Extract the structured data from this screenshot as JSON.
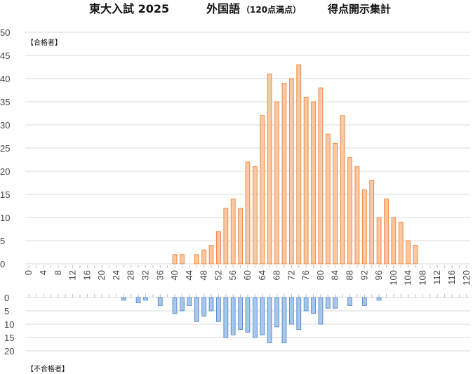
{
  "title": {
    "main": "東大入試 2025",
    "subject": "外国語",
    "note": "（120点満点）",
    "suffix": "得点開示集計"
  },
  "legend": {
    "pass": "【合格者】",
    "fail": "【不合格者】"
  },
  "colors": {
    "pass_fill": "#f9c8a4",
    "pass_stroke": "#ef8a45",
    "fail_fill": "#a9c7ea",
    "fail_stroke": "#5b8fd0",
    "grid": "#d9d9d9"
  },
  "chart_data": [
    {
      "type": "bar",
      "title": "【合格者】",
      "categories": [
        "0",
        "2",
        "4",
        "6",
        "8",
        "10",
        "12",
        "14",
        "16",
        "18",
        "20",
        "22",
        "24",
        "26",
        "28",
        "30",
        "32",
        "34",
        "36",
        "38",
        "40",
        "42",
        "44",
        "46",
        "48",
        "50",
        "52",
        "54",
        "56",
        "58",
        "60",
        "62",
        "64",
        "66",
        "68",
        "70",
        "72",
        "74",
        "76",
        "78",
        "80",
        "82",
        "84",
        "86",
        "88",
        "90",
        "92",
        "94",
        "96",
        "98",
        "100",
        "102",
        "104",
        "106",
        "108",
        "110",
        "112",
        "114",
        "116",
        "118",
        "120"
      ],
      "tick_labels": [
        "0",
        "4",
        "8",
        "12",
        "16",
        "20",
        "24",
        "28",
        "32",
        "36",
        "40",
        "44",
        "48",
        "52",
        "56",
        "60",
        "64",
        "68",
        "72",
        "76",
        "80",
        "84",
        "88",
        "92",
        "96",
        "100",
        "104",
        "108",
        "112",
        "116",
        "120"
      ],
      "values": [
        0,
        0,
        0,
        0,
        0,
        0,
        0,
        0,
        0,
        0,
        0,
        0,
        0,
        0,
        0,
        0,
        0,
        0,
        0,
        0,
        2,
        2,
        0,
        2,
        3,
        4,
        7,
        12,
        14,
        12,
        22,
        21,
        32,
        41,
        35,
        39,
        40,
        43,
        36,
        35,
        38,
        28,
        26,
        32,
        23,
        21,
        16,
        18,
        10,
        14,
        10,
        9,
        5,
        4,
        0,
        0,
        0,
        0,
        0,
        0,
        0
      ],
      "ylim": [
        0,
        50
      ],
      "yticks": [
        0,
        5,
        10,
        15,
        20,
        25,
        30,
        35,
        40,
        45,
        50
      ],
      "grid": true
    },
    {
      "type": "bar",
      "title": "【不合格者】",
      "categories": [
        "0",
        "2",
        "4",
        "6",
        "8",
        "10",
        "12",
        "14",
        "16",
        "18",
        "20",
        "22",
        "24",
        "26",
        "28",
        "30",
        "32",
        "34",
        "36",
        "38",
        "40",
        "42",
        "44",
        "46",
        "48",
        "50",
        "52",
        "54",
        "56",
        "58",
        "60",
        "62",
        "64",
        "66",
        "68",
        "70",
        "72",
        "74",
        "76",
        "78",
        "80",
        "82",
        "84",
        "86",
        "88",
        "90",
        "92",
        "94",
        "96",
        "98",
        "100",
        "102",
        "104",
        "106",
        "108",
        "110",
        "112",
        "114",
        "116",
        "118",
        "120"
      ],
      "values": [
        0,
        0,
        0,
        0,
        0,
        0,
        0,
        0,
        0,
        0,
        0,
        0,
        0,
        1,
        0,
        2,
        1,
        0,
        3,
        0,
        6,
        5,
        3,
        9,
        7,
        5,
        9,
        15,
        14,
        12,
        13,
        15,
        14,
        17,
        11,
        17,
        10,
        12,
        5,
        6,
        10,
        4,
        4,
        0,
        3,
        0,
        3,
        0,
        1,
        0,
        0,
        0,
        0,
        0,
        0,
        0,
        0,
        0,
        0,
        0,
        0
      ],
      "ylim": [
        0,
        20
      ],
      "yticks": [
        0,
        5,
        10,
        15,
        20
      ],
      "inverted": true,
      "grid": true
    }
  ]
}
